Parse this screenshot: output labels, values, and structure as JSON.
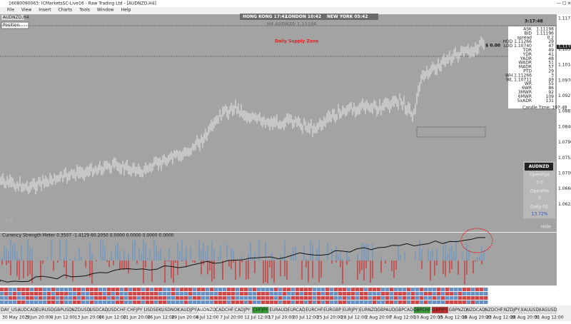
{
  "window": {
    "title": "16080090063: ICMarketsSC-Live16 - Raw Trading Ltd - [AUDNZD,H4]",
    "menu": [
      "File",
      "View",
      "Insert",
      "Charts",
      "Tools",
      "Window",
      "Help"
    ]
  },
  "header": {
    "symbol_tab": "AUDNZD,H4",
    "position_panel": "Position",
    "sessions": [
      "HONG KONG 17:42",
      "LONDON 10:42",
      "NEW YORK 05:42"
    ],
    "clock": "3:17:48",
    "chart_label": "H4 AUDNZD 1.11196",
    "zone_label": "Daily Supply Zone",
    "pnl": "$ 0.00",
    "open_value": "0.0"
  },
  "info_panel": {
    "rows": [
      [
        "ASK",
        "1.11198"
      ],
      [
        "BID",
        "1.11196"
      ],
      [
        "spread",
        "0.2"
      ],
      [
        "HOD 1.11266",
        "29"
      ],
      [
        "LOD 1.10740",
        "47"
      ],
      [
        "TDR",
        "49"
      ],
      [
        "YDR",
        "41"
      ],
      [
        "YADR",
        "48"
      ],
      [
        "WADR",
        "51"
      ],
      [
        "MADR",
        "57"
      ],
      [
        "PTD",
        "29"
      ],
      [
        "WH 1.11266",
        "3"
      ],
      [
        "WL 1.10711",
        "49"
      ],
      [
        "WR",
        "55"
      ],
      [
        "6WR",
        "86"
      ],
      [
        "3MWR",
        "92"
      ],
      [
        "6MWR",
        "109"
      ],
      [
        "5xADR",
        "131"
      ]
    ],
    "candle_time": "Candle Time: 197:48"
  },
  "summary_box": {
    "symbol": "AUDNZD",
    "open_pips_label": "OpenPips",
    "open_pips": "0.0",
    "open_pos_label": "OpenPos",
    "open_pos": "0",
    "daily_label": "Daily P/L",
    "daily_value": "13.72%"
  },
  "indicator": {
    "label": "Currency Strength Meter 0.3507 -1.4129 60.2050 0.0000 0.0000 0.0000 0.0000",
    "hide": "Hide"
  },
  "price_axis": [
    "1.11715",
    "1.11196",
    "1.10575",
    "1.10140",
    "1.09705",
    "1.09270",
    "1.08835",
    "1.08400",
    "1.07965",
    "1.07530",
    "1.07095",
    "1.06660",
    "1.06225"
  ],
  "tabs": [
    "DAY_US",
    "AUDCAD",
    "EURUSD",
    "GBPUSD",
    "NZDUSD",
    "USDCAD",
    "USDCHF",
    "CHFJPY",
    "USDSEK",
    "USDNOK",
    "AUDJPY",
    "AUDNZD",
    "CADCHF",
    "CADJPY",
    "CHFJPY",
    "EURAUD",
    "EURCAD",
    "EURCHF",
    "EURGBP",
    "EURJPY",
    "EURNZD",
    "GBPAUD",
    "GBPCAD",
    "GBPCHF",
    "GBPJPY",
    "GBPNZD",
    "NZDCAD",
    "NZDCHF",
    "NZDJPY",
    "XAUUSD",
    "XAGUSD"
  ],
  "dates": [
    "30 May 2023",
    "5 Jun 20:00",
    "8 Jun 12:00",
    "13 Jun 20:00",
    "16 Jun 12:00",
    "21 Jun 20:00",
    "26 Jun 12:00",
    "29 Jun 20:00",
    "4 Jul 12:00",
    "7 Jul 20:00",
    "12 Jul 12:00",
    "17 Jul 20:00",
    "20 Jul 12:00",
    "25 Jul 20:00",
    "28 Jul 12:00",
    "2 Aug 20:00",
    "7 Aug 12:00",
    "10 Aug 20:00",
    "15 Aug 12:00",
    "18 Aug 20:00",
    "23 Aug 12:00",
    "28 Aug 20:00",
    "31 Aug 12:00"
  ]
}
